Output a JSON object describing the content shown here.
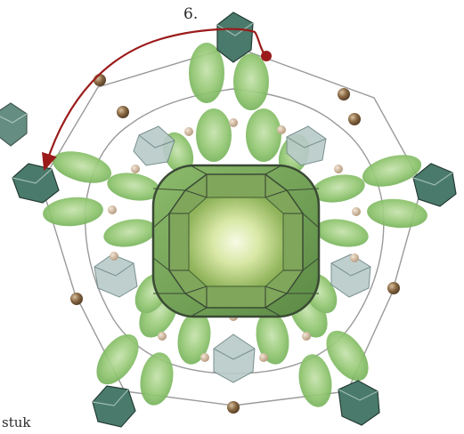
{
  "diagram": {
    "step_label": "6.",
    "caption": "stuk",
    "colors": {
      "background": "#ffffff",
      "thread": "#9a9a9a",
      "arrow": "#9b1b1b",
      "leaf_bead": "#8fc46c",
      "pearl": "#8a6a45",
      "small_round": "#c9b39b",
      "crystal_dark": "#3f6c5d",
      "crystal_light": "#a9bfbd",
      "center_stone": "#6b8f4a",
      "center_light": "#eef4c8"
    },
    "icons": [
      "bicone-crystal-icon",
      "drop-bead-icon",
      "pearl-bead-icon",
      "round-seed-bead-icon",
      "octagon-rivoli-stone-icon",
      "arrow-path-icon"
    ]
  }
}
